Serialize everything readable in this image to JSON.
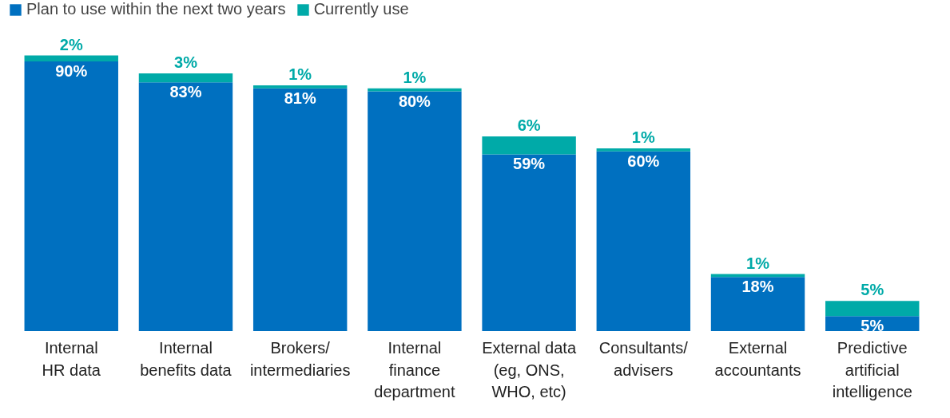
{
  "chart_data": {
    "type": "bar",
    "stacked": true,
    "legend": "top left",
    "categories": [
      "Internal\nHR data",
      "Internal\nbenefits data",
      "Brokers/\nintermediaries",
      "Internal\nfinance\ndepartment",
      "External data\n(eg, ONS,\nWHO, etc)",
      "Consultants/\nadvisers",
      "External\naccountants",
      "Predictive\nartificial\nintelligence"
    ],
    "series": [
      {
        "name": "Plan to use within the next two years",
        "color": "#0070c0",
        "values": [
          90,
          83,
          81,
          80,
          59,
          60,
          18,
          5
        ],
        "value_labels": [
          "90%",
          "83%",
          "81%",
          "80%",
          "59%",
          "60%",
          "18%",
          "5%"
        ]
      },
      {
        "name": "Currently use",
        "color": "#00aaa8",
        "values": [
          2,
          3,
          1,
          1,
          6,
          1,
          1,
          5
        ],
        "value_labels": [
          "2%",
          "3%",
          "1%",
          "1%",
          "6%",
          "1%",
          "1%",
          "5%"
        ]
      }
    ]
  }
}
